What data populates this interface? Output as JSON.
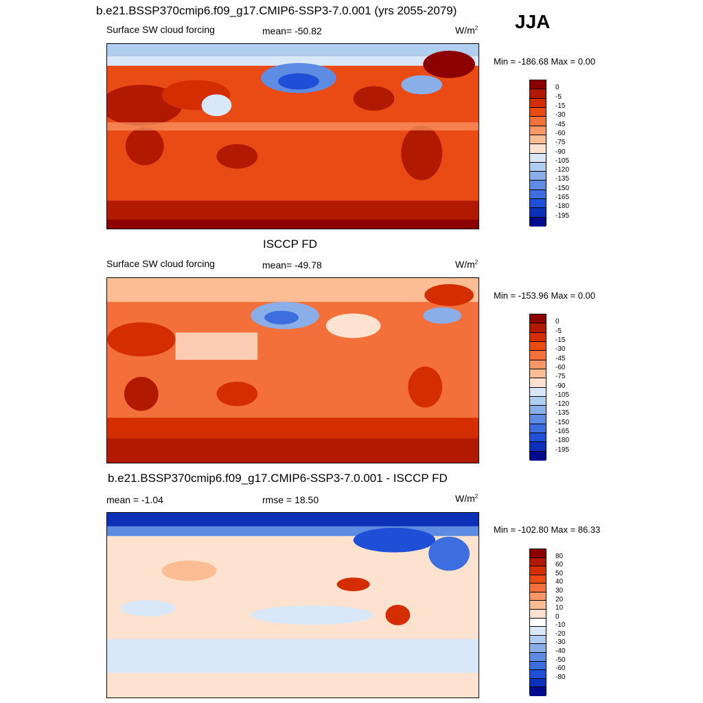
{
  "header": {
    "title": "b.e21.BSSP370cmip6.f09_g17.CMIP6-SSP3-7.0.001 (yrs 2055-2079)",
    "season": "JJA"
  },
  "colors": {
    "forcing": [
      "#8c0000",
      "#b11a00",
      "#d42e00",
      "#ea4a14",
      "#f4703a",
      "#f99866",
      "#fcbd95",
      "#fde3cf",
      "#d8e8f8",
      "#b0ceef",
      "#8aafe8",
      "#5f8ce3",
      "#3d6ee0",
      "#1f4fd6",
      "#0d30b8",
      "#000a8c"
    ],
    "diff": [
      "#8c0000",
      "#b11a00",
      "#d42e00",
      "#ea4a14",
      "#f4703a",
      "#f99866",
      "#fcbd95",
      "#fde3cf",
      "#ffffff",
      "#d8e8f8",
      "#b0ceef",
      "#8aafe8",
      "#5f8ce3",
      "#3d6ee0",
      "#1f4fd6",
      "#0d30b8",
      "#000a8c"
    ]
  },
  "panels": [
    {
      "label": "Surface SW cloud forcing",
      "stat1": "mean= -50.82",
      "stat2": "",
      "units": "W/m",
      "units_exp": "2",
      "subtitle": "",
      "minmax": "Min = -186.68 Max =   0.00",
      "ticks": [
        "0",
        "-5",
        "-15",
        "-30",
        "-45",
        "-60",
        "-75",
        "-90",
        "-105",
        "-120",
        "-135",
        "-150",
        "-165",
        "-180",
        "-195"
      ]
    },
    {
      "label": "Surface SW cloud forcing",
      "stat1": "mean= -49.78",
      "stat2": "",
      "units": "W/m",
      "units_exp": "2",
      "subtitle": "ISCCP FD",
      "minmax": "Min = -153.96 Max =   0.00",
      "ticks": [
        "0",
        "-5",
        "-15",
        "-30",
        "-45",
        "-60",
        "-75",
        "-90",
        "-105",
        "-120",
        "-135",
        "-150",
        "-165",
        "-180",
        "-195"
      ]
    },
    {
      "label": "mean =  -1.04",
      "stat1": "rmse =  18.50",
      "stat2": "",
      "units": "W/m",
      "units_exp": "2",
      "subtitle": "b.e21.BSSP370cmip6.f09_g17.CMIP6-SSP3-7.0.001 - ISCCP FD",
      "minmax": "Min = -102.80 Max =  86.33",
      "ticks": [
        "80",
        "60",
        "50",
        "40",
        "30",
        "20",
        "10",
        "0",
        "-10",
        "-20",
        "-30",
        "-40",
        "-50",
        "-60",
        "-80"
      ]
    }
  ]
}
